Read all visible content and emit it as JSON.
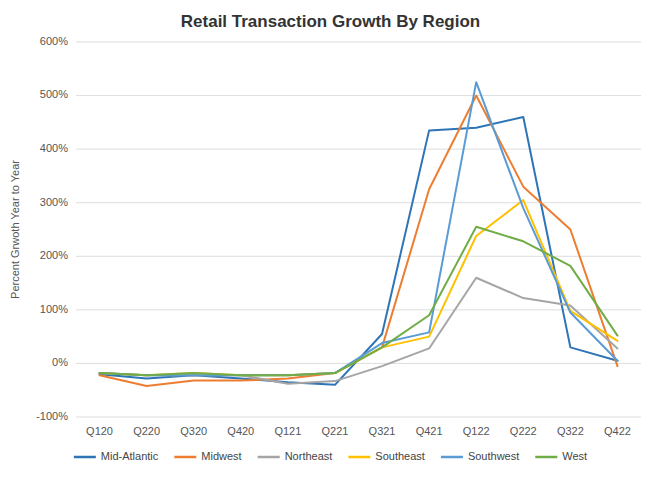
{
  "chart_data": {
    "type": "line",
    "title": "Retail Transaction Growth By Region",
    "ylabel": "Percent Grwoth Year to Year",
    "categories": [
      "Q120",
      "Q220",
      "Q320",
      "Q420",
      "Q121",
      "Q221",
      "Q321",
      "Q421",
      "Q122",
      "Q222",
      "Q322",
      "Q422"
    ],
    "series": [
      {
        "name": "Mid-Atlantic",
        "color": "#2e75b6",
        "values": [
          -20,
          -28,
          -22,
          -28,
          -35,
          -40,
          55,
          435,
          440,
          460,
          30,
          5
        ]
      },
      {
        "name": "Midwest",
        "color": "#ed7d31",
        "values": [
          -22,
          -42,
          -32,
          -32,
          -28,
          -18,
          30,
          325,
          500,
          330,
          250,
          -5
        ]
      },
      {
        "name": "Northeast",
        "color": "#a5a5a5",
        "values": [
          -18,
          -22,
          -22,
          -22,
          -38,
          -33,
          -5,
          28,
          160,
          122,
          108,
          28
        ]
      },
      {
        "name": "Southeast",
        "color": "#ffc000",
        "values": [
          -18,
          -22,
          -18,
          -22,
          -22,
          -18,
          30,
          50,
          238,
          305,
          98,
          42
        ]
      },
      {
        "name": "Southwest",
        "color": "#5b9bd5",
        "values": [
          -18,
          -22,
          -22,
          -22,
          -22,
          -18,
          38,
          58,
          525,
          290,
          95,
          5
        ]
      },
      {
        "name": "West",
        "color": "#70ad47",
        "values": [
          -18,
          -22,
          -18,
          -22,
          -22,
          -18,
          30,
          90,
          255,
          228,
          182,
          52
        ]
      }
    ],
    "ylim": [
      -100,
      600
    ],
    "yticks": [
      {
        "value": -100,
        "label": "-100%"
      },
      {
        "value": 0,
        "label": "0%"
      },
      {
        "value": 100,
        "label": "100%"
      },
      {
        "value": 200,
        "label": "200%"
      },
      {
        "value": 300,
        "label": "300%"
      },
      {
        "value": 400,
        "label": "400%"
      },
      {
        "value": 500,
        "label": "500%"
      },
      {
        "value": 600,
        "label": "600%"
      }
    ],
    "grid": true,
    "legend": "bottom"
  }
}
